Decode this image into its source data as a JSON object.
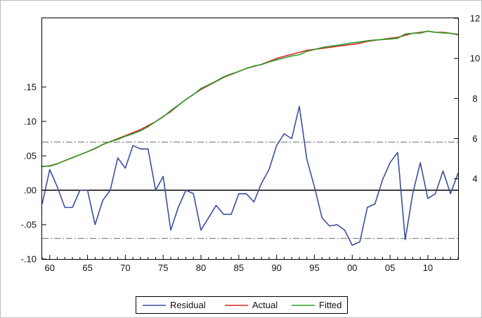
{
  "chart_data": {
    "type": "line",
    "title": "",
    "xlabel": "",
    "x_tick_labels": [
      "60",
      "65",
      "70",
      "75",
      "80",
      "85",
      "90",
      "95",
      "00",
      "05",
      "10"
    ],
    "x_tick_years": [
      1960,
      1965,
      1970,
      1975,
      1980,
      1985,
      1990,
      1995,
      2000,
      2005,
      2010
    ],
    "xlim": [
      1959,
      2014
    ],
    "left_axis": {
      "ylim": [
        -0.1,
        0.25
      ],
      "tick_values": [
        -0.1,
        -0.05,
        0.0,
        0.05,
        0.1,
        0.15
      ],
      "tick_labels": [
        "-.10",
        "-.05",
        ".00",
        ".05",
        ".10",
        ".15"
      ]
    },
    "right_axis": {
      "ylim": [
        0,
        12
      ],
      "tick_values": [
        4,
        6,
        8,
        10,
        12
      ],
      "tick_labels": [
        "4",
        "6",
        "8",
        "10",
        "12"
      ]
    },
    "zero_line": 0.0,
    "bands": [
      0.07,
      -0.07
    ],
    "legend_position": "bottom-center",
    "series": [
      {
        "name": "Residual",
        "axis": "left",
        "color": "#3a4fa0",
        "x": [
          1959,
          1960,
          1961,
          1962,
          1963,
          1964,
          1965,
          1966,
          1967,
          1968,
          1969,
          1970,
          1971,
          1972,
          1973,
          1974,
          1975,
          1976,
          1977,
          1978,
          1979,
          1980,
          1981,
          1982,
          1983,
          1984,
          1985,
          1986,
          1987,
          1988,
          1989,
          1990,
          1991,
          1992,
          1993,
          1994,
          1995,
          1996,
          1997,
          1998,
          1999,
          2000,
          2001,
          2002,
          2003,
          2004,
          2005,
          2006,
          2007,
          2008,
          2009,
          2010,
          2011,
          2012,
          2013,
          2014
        ],
        "values": [
          -0.02,
          0.03,
          0.005,
          -0.025,
          -0.025,
          0.0,
          0.0,
          -0.05,
          -0.015,
          0.0,
          0.047,
          0.032,
          0.065,
          0.06,
          0.06,
          0.0,
          0.02,
          -0.058,
          -0.025,
          0.0,
          -0.005,
          -0.058,
          -0.04,
          -0.022,
          -0.035,
          -0.035,
          -0.005,
          -0.005,
          -0.017,
          0.01,
          0.03,
          0.065,
          0.082,
          0.075,
          0.122,
          0.045,
          0.005,
          -0.04,
          -0.052,
          -0.05,
          -0.058,
          -0.08,
          -0.075,
          -0.025,
          -0.02,
          0.015,
          0.04,
          0.055,
          -0.072,
          -0.005,
          0.04,
          -0.012,
          -0.005,
          0.028,
          -0.005,
          0.025
        ]
      },
      {
        "name": "Actual",
        "axis": "right",
        "color": "#d62728",
        "x": [
          1959,
          1960,
          1961,
          1962,
          1963,
          1964,
          1965,
          1966,
          1967,
          1968,
          1969,
          1970,
          1971,
          1972,
          1973,
          1974,
          1975,
          1976,
          1977,
          1978,
          1979,
          1980,
          1981,
          1982,
          1983,
          1984,
          1985,
          1986,
          1987,
          1988,
          1989,
          1990,
          1991,
          1992,
          1993,
          1994,
          1995,
          1996,
          1997,
          1998,
          1999,
          2000,
          2001,
          2002,
          2003,
          2004,
          2005,
          2006,
          2007,
          2008,
          2009,
          2010,
          2011,
          2012,
          2013,
          2014
        ],
        "values": [
          4.6,
          4.65,
          4.75,
          4.9,
          5.05,
          5.2,
          5.35,
          5.5,
          5.7,
          5.85,
          6.0,
          6.15,
          6.3,
          6.45,
          6.65,
          6.85,
          7.1,
          7.35,
          7.65,
          7.95,
          8.2,
          8.45,
          8.65,
          8.85,
          9.05,
          9.2,
          9.35,
          9.5,
          9.6,
          9.7,
          9.85,
          10.0,
          10.1,
          10.2,
          10.3,
          10.4,
          10.45,
          10.5,
          10.55,
          10.6,
          10.65,
          10.7,
          10.75,
          10.85,
          10.9,
          10.95,
          11.0,
          11.05,
          11.15,
          11.25,
          11.3,
          11.35,
          11.3,
          11.3,
          11.25,
          11.2
        ]
      },
      {
        "name": "Fitted",
        "axis": "right",
        "color": "#2ca02c",
        "x": [
          1959,
          1960,
          1961,
          1962,
          1963,
          1964,
          1965,
          1966,
          1967,
          1968,
          1969,
          1970,
          1971,
          1972,
          1973,
          1974,
          1975,
          1976,
          1977,
          1978,
          1979,
          1980,
          1981,
          1982,
          1983,
          1984,
          1985,
          1986,
          1987,
          1988,
          1989,
          1990,
          1991,
          1992,
          1993,
          1994,
          1995,
          1996,
          1997,
          1998,
          1999,
          2000,
          2001,
          2002,
          2003,
          2004,
          2005,
          2006,
          2007,
          2008,
          2009,
          2010,
          2011,
          2012,
          2013,
          2014
        ],
        "values": [
          4.62,
          4.63,
          4.74,
          4.91,
          5.06,
          5.2,
          5.35,
          5.52,
          5.71,
          5.85,
          5.96,
          6.12,
          6.24,
          6.39,
          6.59,
          6.85,
          7.08,
          7.4,
          7.67,
          7.95,
          8.2,
          8.5,
          8.68,
          8.87,
          9.08,
          9.23,
          9.35,
          9.5,
          9.62,
          9.69,
          9.82,
          9.93,
          10.02,
          10.12,
          10.18,
          10.35,
          10.44,
          10.54,
          10.6,
          10.65,
          10.71,
          10.78,
          10.82,
          10.88,
          10.92,
          10.94,
          10.96,
          11.0,
          11.22,
          11.25,
          11.26,
          11.36,
          11.3,
          11.27,
          11.25,
          11.17
        ]
      }
    ]
  }
}
